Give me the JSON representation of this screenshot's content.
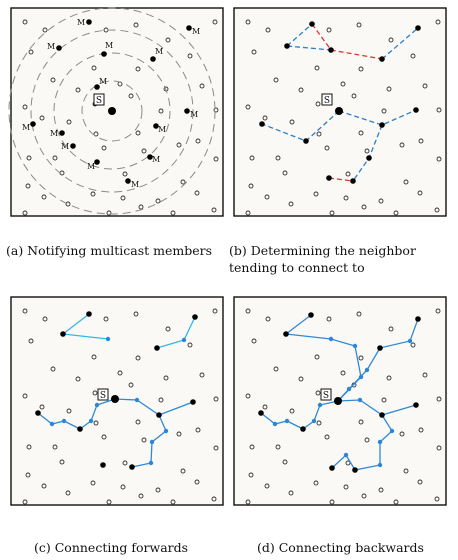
{
  "panels": {
    "a": {
      "caption": "(a) Notifying multicast members",
      "server_label": "S",
      "member_label": "M"
    },
    "b": {
      "caption_line1": "(b)  Determining   the   neighbor",
      "caption_line2": "tending to connect to",
      "server_label": "S"
    },
    "c": {
      "caption": "(c)  Connecting forwards",
      "server_label": "S"
    },
    "d": {
      "caption": "(d)  Connecting backwards",
      "server_label": "S"
    }
  },
  "colors": {
    "background": "#fbf9f5",
    "frame": "#111111",
    "ring": "#8a8a8a",
    "path_blue_dashed": "#2a7fc9",
    "path_red_dashed": "#e03131",
    "path_blue_solid": "#2f8ad6",
    "path_light_blue": "#31b7e8",
    "node_member": "#000000",
    "node_forwarder": "#2a86d8"
  }
}
